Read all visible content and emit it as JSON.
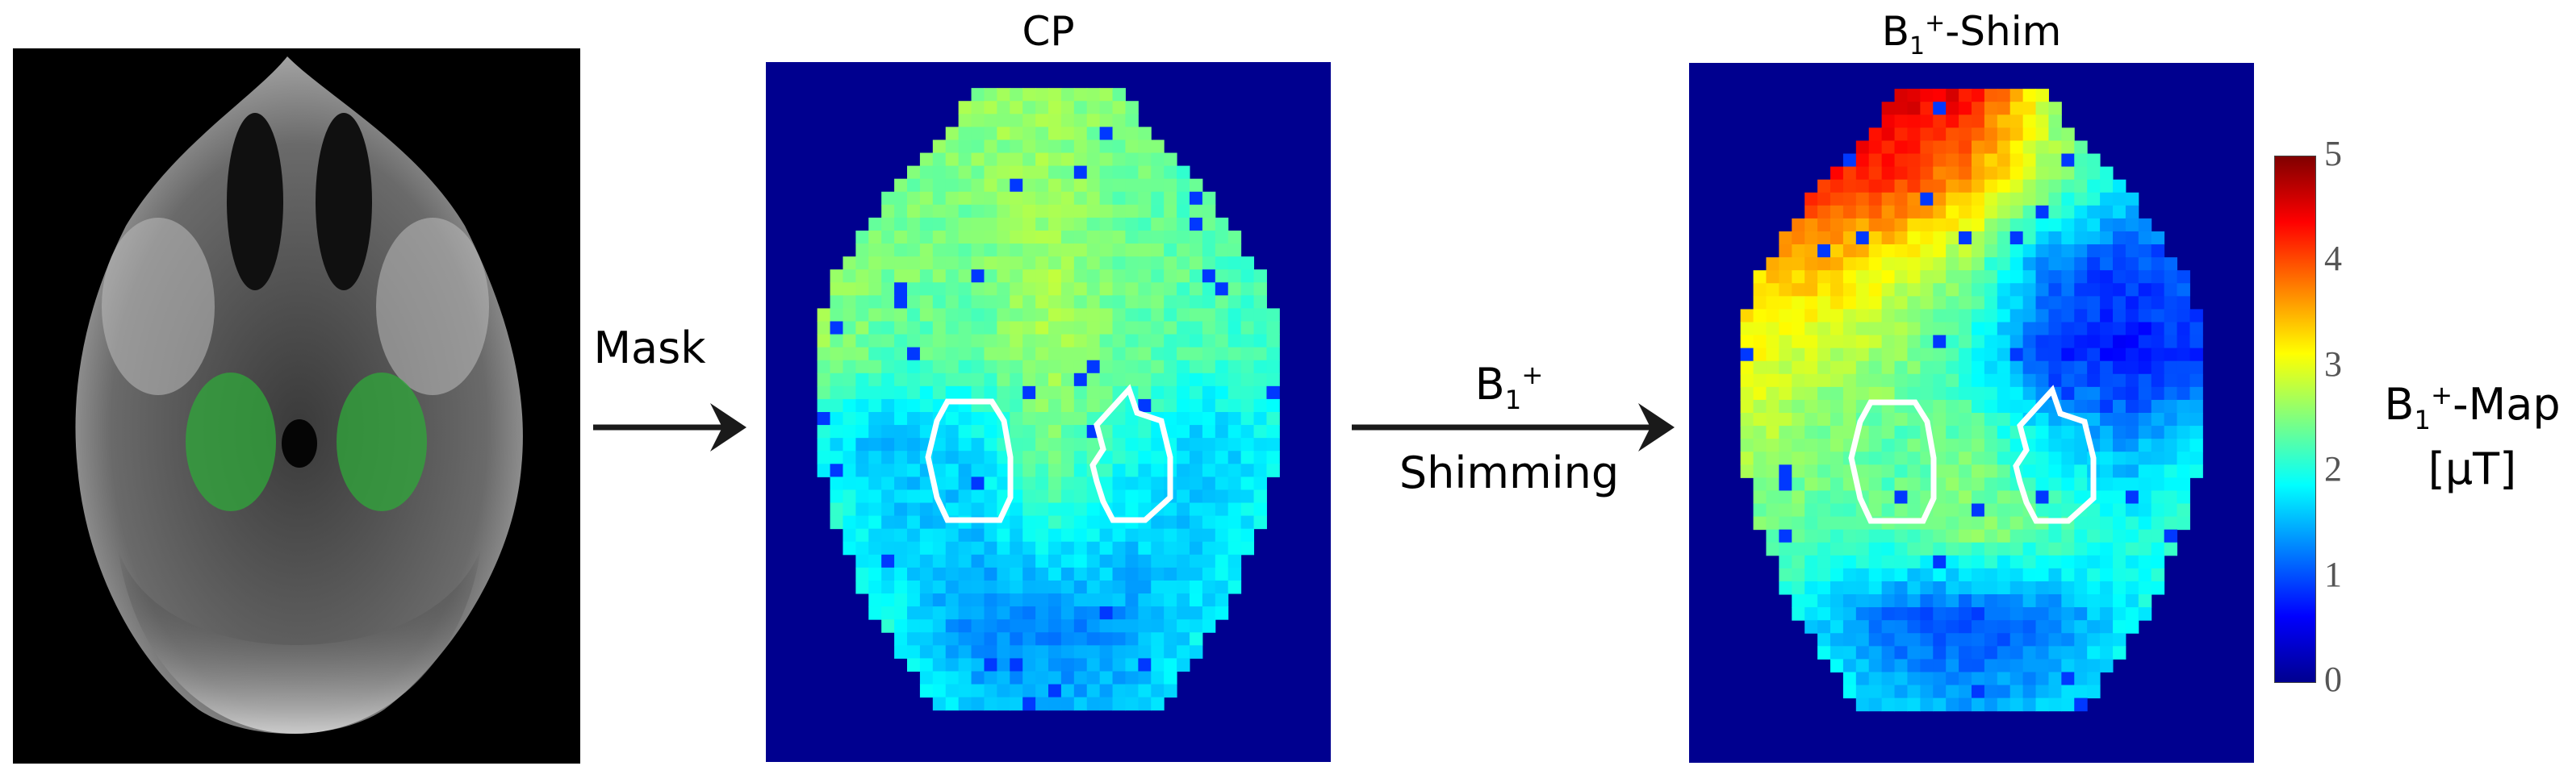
{
  "titles": {
    "cp": "CP",
    "shim_base": "B",
    "shim_sub": "1",
    "shim_sup": "+",
    "shim_rest": "-Shim"
  },
  "arrows": {
    "mask_label": "Mask",
    "shimming_label_base": "B",
    "shimming_label_sub": "1",
    "shimming_label_sup": "+",
    "shimming_label_2": "Shimming"
  },
  "colorbar": {
    "label_base": "B",
    "label_sub": "1",
    "label_sup": "+",
    "label_rest": "-Map",
    "unit": "[µT]",
    "ticks": [
      "5",
      "4",
      "3",
      "2",
      "1",
      "0"
    ],
    "range": [
      0,
      5
    ],
    "colormap": "jet"
  },
  "colors": {
    "background": "#00008f",
    "roi_outline": "#ffffff",
    "mask_overlay": "#2fa83a",
    "arrow": "#1a1a1a"
  },
  "chart_data": {
    "type": "heatmap",
    "note_units": "µT",
    "maps": [
      {
        "name": "CP",
        "coarse_grid": [
          [
            2.4,
            2.5,
            2.6,
            2.6,
            2.5,
            2.3,
            2.2
          ],
          [
            2.5,
            2.4,
            2.5,
            2.6,
            2.4,
            2.2,
            2.1
          ],
          [
            2.6,
            2.5,
            2.4,
            2.7,
            2.4,
            2.3,
            2.2
          ],
          [
            2.6,
            2.3,
            2.3,
            2.7,
            2.4,
            2.2,
            2.1
          ],
          [
            1.9,
            1.5,
            1.7,
            2.5,
            2.0,
            1.6,
            1.9
          ],
          [
            2.2,
            1.7,
            1.6,
            2.0,
            1.7,
            1.6,
            2.0
          ],
          [
            2.2,
            1.9,
            1.3,
            1.3,
            1.4,
            1.8,
            2.1
          ],
          [
            2.3,
            2.1,
            1.6,
            1.4,
            1.6,
            2.0,
            2.2
          ]
        ]
      },
      {
        "name": "B1+-Shim",
        "coarse_grid": [
          [
            3.6,
            4.3,
            4.6,
            4.4,
            2.8,
            2.2,
            2.2
          ],
          [
            3.6,
            4.2,
            4.2,
            3.6,
            2.6,
            1.8,
            1.8
          ],
          [
            3.3,
            3.5,
            3.0,
            2.5,
            1.2,
            0.9,
            1.2
          ],
          [
            3.2,
            2.8,
            2.6,
            2.0,
            0.9,
            0.7,
            0.9
          ],
          [
            2.8,
            2.5,
            2.3,
            2.4,
            1.8,
            1.4,
            1.9
          ],
          [
            2.5,
            2.3,
            2.3,
            2.6,
            2.3,
            2.0,
            2.2
          ],
          [
            2.3,
            1.7,
            1.1,
            0.9,
            1.2,
            1.8,
            2.2
          ],
          [
            2.2,
            2.0,
            1.6,
            1.4,
            1.6,
            2.0,
            2.2
          ]
        ]
      }
    ]
  }
}
